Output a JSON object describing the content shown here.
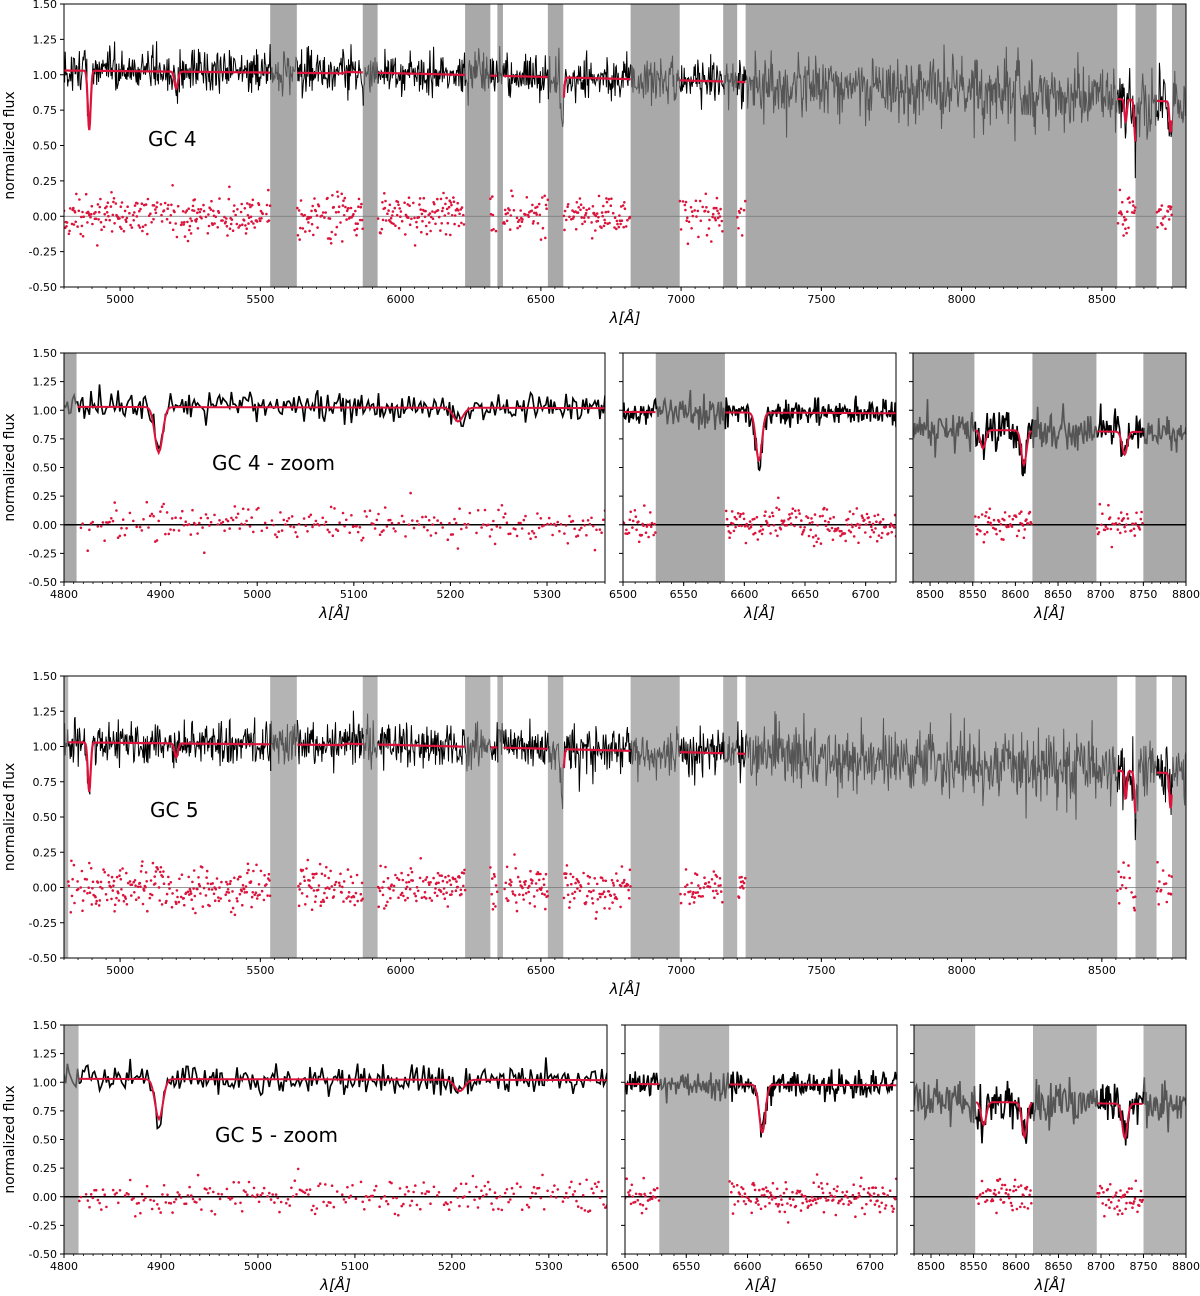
{
  "figure": {
    "ylabel": "normalized flux",
    "xlabel": "λ[Å]"
  },
  "colors": {
    "observed": "#000000",
    "observed_masked": "#555555",
    "model": "#dc143c",
    "residuals": "#dc143c",
    "zero_line": "#000000",
    "mask_band_top": "#a9a9a9",
    "mask_band_bottom": "#b4b4b4"
  },
  "chart_data": [
    {
      "id": "gc4-full",
      "type": "line",
      "annotation": "GC 4",
      "xlim": [
        4800,
        8800
      ],
      "ylim": [
        -0.5,
        1.5
      ],
      "xticks": [
        5000,
        5500,
        6000,
        6500,
        7000,
        7500,
        8000,
        8500
      ],
      "yticks": [
        -0.5,
        -0.25,
        0.0,
        0.25,
        0.5,
        0.75,
        1.0,
        1.25,
        1.5
      ],
      "masked_ranges": [
        [
          5535,
          5630
        ],
        [
          5865,
          5918
        ],
        [
          6230,
          6320
        ],
        [
          6345,
          6365
        ],
        [
          6525,
          6580
        ],
        [
          6820,
          6995
        ],
        [
          7150,
          7200
        ],
        [
          7230,
          8555
        ],
        [
          8620,
          8695
        ],
        [
          8750,
          8800
        ]
      ],
      "absorption_lines": [
        {
          "x": 4890,
          "depth": 0.42,
          "width": 5
        },
        {
          "x": 5200,
          "depth": 0.12,
          "width": 6
        },
        {
          "x": 6575,
          "depth": 0.38,
          "width": 5
        },
        {
          "x": 8585,
          "depth": 0.16,
          "width": 4
        },
        {
          "x": 8620,
          "depth": 0.3,
          "width": 4
        },
        {
          "x": 8745,
          "depth": 0.22,
          "width": 4
        }
      ],
      "series": [
        {
          "name": "observed"
        },
        {
          "name": "model"
        },
        {
          "name": "residuals"
        }
      ]
    },
    {
      "id": "gc4-zoom-1",
      "type": "line",
      "annotation": "GC 4 - zoom",
      "xlim": [
        4800,
        5360
      ],
      "ylim": [
        -0.5,
        1.5
      ],
      "xticks": [
        4800,
        4900,
        5000,
        5100,
        5200,
        5300
      ],
      "yticks": [
        -0.5,
        -0.25,
        0.0,
        0.25,
        0.5,
        0.75,
        1.0,
        1.25,
        1.5
      ],
      "masked_ranges": [
        [
          4800,
          4813
        ]
      ],
      "absorption_lines": [
        {
          "x": 4898,
          "depth": 0.4,
          "width": 4
        },
        {
          "x": 5208,
          "depth": 0.12,
          "width": 5
        }
      ],
      "series": [
        {
          "name": "observed"
        },
        {
          "name": "model"
        },
        {
          "name": "residuals"
        }
      ]
    },
    {
      "id": "gc4-zoom-2",
      "type": "line",
      "annotation": "",
      "xlim": [
        6500,
        6725
      ],
      "ylim": [
        -0.5,
        1.5
      ],
      "xticks": [
        6500,
        6550,
        6600,
        6650,
        6700
      ],
      "yticks": [],
      "masked_ranges": [
        [
          6527,
          6584
        ]
      ],
      "absorption_lines": [
        {
          "x": 6612,
          "depth": 0.42,
          "width": 2.5
        }
      ],
      "series": [
        {
          "name": "observed"
        },
        {
          "name": "model"
        },
        {
          "name": "residuals"
        }
      ]
    },
    {
      "id": "gc4-zoom-3",
      "type": "line",
      "annotation": "",
      "xlim": [
        8480,
        8800
      ],
      "ylim": [
        -0.5,
        1.5
      ],
      "xticks": [
        8500,
        8550,
        8600,
        8650,
        8700,
        8750,
        8800
      ],
      "yticks": [],
      "masked_ranges": [
        [
          8480,
          8552
        ],
        [
          8620,
          8695
        ],
        [
          8750,
          8800
        ]
      ],
      "absorption_lines": [
        {
          "x": 8562,
          "depth": 0.16,
          "width": 3
        },
        {
          "x": 8610,
          "depth": 0.3,
          "width": 3
        },
        {
          "x": 8728,
          "depth": 0.2,
          "width": 3
        }
      ],
      "series": [
        {
          "name": "observed"
        },
        {
          "name": "model"
        },
        {
          "name": "residuals"
        }
      ]
    },
    {
      "id": "gc5-full",
      "type": "line",
      "annotation": "GC 5",
      "xlim": [
        4800,
        8800
      ],
      "ylim": [
        -0.5,
        1.5
      ],
      "xticks": [
        5000,
        5500,
        6000,
        6500,
        7000,
        7500,
        8000,
        8500
      ],
      "yticks": [
        -0.5,
        -0.25,
        0.0,
        0.25,
        0.5,
        0.75,
        1.0,
        1.25,
        1.5
      ],
      "masked_ranges": [
        [
          4800,
          4815
        ],
        [
          5535,
          5630
        ],
        [
          5865,
          5918
        ],
        [
          6230,
          6320
        ],
        [
          6345,
          6365
        ],
        [
          6525,
          6580
        ],
        [
          6820,
          6995
        ],
        [
          7150,
          7200
        ],
        [
          7230,
          8555
        ],
        [
          8620,
          8695
        ],
        [
          8750,
          8800
        ]
      ],
      "absorption_lines": [
        {
          "x": 4890,
          "depth": 0.35,
          "width": 5
        },
        {
          "x": 5200,
          "depth": 0.1,
          "width": 6
        },
        {
          "x": 6575,
          "depth": 0.36,
          "width": 5
        },
        {
          "x": 8585,
          "depth": 0.2,
          "width": 4
        },
        {
          "x": 8620,
          "depth": 0.3,
          "width": 4
        },
        {
          "x": 8745,
          "depth": 0.25,
          "width": 4
        }
      ],
      "series": [
        {
          "name": "observed"
        },
        {
          "name": "model"
        },
        {
          "name": "residuals"
        }
      ]
    },
    {
      "id": "gc5-zoom-1",
      "type": "line",
      "annotation": "GC 5 - zoom",
      "xlim": [
        4800,
        5360
      ],
      "ylim": [
        -0.5,
        1.5
      ],
      "xticks": [
        4800,
        4900,
        5000,
        5100,
        5200,
        5300
      ],
      "yticks": [
        -0.5,
        -0.25,
        0.0,
        0.25,
        0.5,
        0.75,
        1.0,
        1.25,
        1.5
      ],
      "masked_ranges": [
        [
          4800,
          4815
        ]
      ],
      "absorption_lines": [
        {
          "x": 4898,
          "depth": 0.35,
          "width": 4
        },
        {
          "x": 5208,
          "depth": 0.1,
          "width": 5
        }
      ],
      "series": [
        {
          "name": "observed"
        },
        {
          "name": "model"
        },
        {
          "name": "residuals"
        }
      ]
    },
    {
      "id": "gc5-zoom-2",
      "type": "line",
      "annotation": "",
      "xlim": [
        6500,
        6722
      ],
      "ylim": [
        -0.5,
        1.5
      ],
      "xticks": [
        6500,
        6550,
        6600,
        6650,
        6700
      ],
      "yticks": [],
      "masked_ranges": [
        [
          6528,
          6585
        ]
      ],
      "absorption_lines": [
        {
          "x": 6612,
          "depth": 0.42,
          "width": 2.5
        }
      ],
      "series": [
        {
          "name": "observed"
        },
        {
          "name": "model"
        },
        {
          "name": "residuals"
        }
      ]
    },
    {
      "id": "gc5-zoom-3",
      "type": "line",
      "annotation": "",
      "xlim": [
        8480,
        8800
      ],
      "ylim": [
        -0.5,
        1.5
      ],
      "xticks": [
        8500,
        8550,
        8600,
        8650,
        8700,
        8750,
        8800
      ],
      "yticks": [],
      "masked_ranges": [
        [
          8480,
          8552
        ],
        [
          8620,
          8695
        ],
        [
          8750,
          8800
        ]
      ],
      "absorption_lines": [
        {
          "x": 8562,
          "depth": 0.2,
          "width": 3
        },
        {
          "x": 8610,
          "depth": 0.3,
          "width": 3
        },
        {
          "x": 8728,
          "depth": 0.3,
          "width": 3
        }
      ],
      "series": [
        {
          "name": "observed"
        },
        {
          "name": "model"
        },
        {
          "name": "residuals"
        }
      ]
    }
  ]
}
